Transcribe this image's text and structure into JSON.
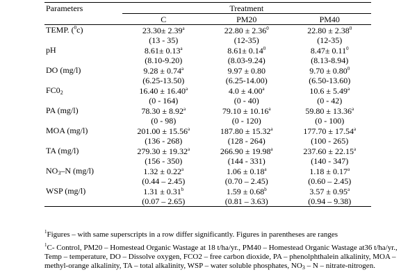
{
  "table": {
    "header": {
      "parameters": "Parameters",
      "treatment": "Treatment",
      "c": "C",
      "pm20": "PM20",
      "pm40": "PM40"
    },
    "rows": [
      {
        "param_a": "TEMP. (",
        "param_sup": "0",
        "param_b": "c)",
        "param_sub": "",
        "c_mean": "23.30± 2.39",
        "c_sup": "a",
        "c_range": "(13 - 35)",
        "pm20_mean": "22.80 ± 2.36",
        "pm20_sup": "0",
        "pm20_range": "(12-35)",
        "pm40_mean": "22.80 ± 2.38",
        "pm40_sup": "0",
        "pm40_range": "(12-35)"
      },
      {
        "param_a": "pH",
        "param_sup": "",
        "param_b": "",
        "param_sub": "",
        "c_mean": "8.61± 0.13",
        "c_sup": "a",
        "c_range": "(8.10-9.20)",
        "pm20_mean": "8.61± 0.14",
        "pm20_sup": "0",
        "pm20_range": "(8.03-9.24)",
        "pm40_mean": "8.47± 0.11",
        "pm40_sup": "0",
        "pm40_range": "(8.13-8.94)"
      },
      {
        "param_a": "DO (mg/l)",
        "param_sup": "",
        "param_b": "",
        "param_sub": "",
        "c_mean": "9.28 ± 0.74",
        "c_sup": "a",
        "c_range": "(6.25-13.50)",
        "pm20_mean": "9.97 ± 0.80",
        "pm20_sup": "",
        "pm20_range": "(6.25-14.00)",
        "pm40_mean": "9.70 ± 0.80",
        "pm40_sup": "0",
        "pm40_range": "(6.50-13.60)"
      },
      {
        "param_a": "FC0",
        "param_sup": "",
        "param_b": "",
        "param_sub": "2",
        "c_mean": "16.40 ± 16.40",
        "c_sup": "a",
        "c_range": "(0 - 164)",
        "pm20_mean": "4.0 ± 4.00",
        "pm20_sup": "a",
        "pm20_range": "(0 - 40)",
        "pm40_mean": "10.6 ± 5.49",
        "pm40_sup": "a",
        "pm40_range": "(0 - 42)"
      },
      {
        "param_a": "PA (mg/l)",
        "param_sup": "",
        "param_b": "",
        "param_sub": "",
        "c_mean": "78.30 ± 8.92",
        "c_sup": "a",
        "c_range": "(0 - 98)",
        "pm20_mean": "79.10 ± 10.16",
        "pm20_sup": "a",
        "pm20_range": "(0 - 120)",
        "pm40_mean": "59.80 ± 13.36",
        "pm40_sup": "a",
        "pm40_range": "(0 - 100)"
      },
      {
        "param_a": "MOA (mg/l)",
        "param_sup": "",
        "param_b": "",
        "param_sub": "",
        "c_mean": "201.00 ± 15.56",
        "c_sup": "a",
        "c_range": "(136 - 268)",
        "pm20_mean": "187.80 ± 15.32",
        "pm20_sup": "a",
        "pm20_range": "(128 - 264)",
        "pm40_mean": "177.70 ± 17.54",
        "pm40_sup": "a",
        "pm40_range": "(100 - 265)"
      },
      {
        "param_a": "TA (mg/l)",
        "param_sup": "",
        "param_b": "",
        "param_sub": "",
        "c_mean": "279.30 ± 19.32",
        "c_sup": "a",
        "c_range": "(156 - 350)",
        "pm20_mean": "266.90 ± 19.98",
        "pm20_sup": "a",
        "pm20_range": "(144 - 331)",
        "pm40_mean": "237.60 ± 22.15",
        "pm40_sup": "a",
        "pm40_range": "(140 - 347)"
      },
      {
        "param_a": "NO",
        "param_sup": "",
        "param_b": "–N (mg/l)",
        "param_sub": "3",
        "c_mean": "1.32 ± 0.22",
        "c_sup": "a",
        "c_range": "(0.44 – 2.45)",
        "pm20_mean": "1.06 ± 0.18",
        "pm20_sup": "a",
        "pm20_range": "(0.70 – 2.45)",
        "pm40_mean": "1.18 ± 0.17",
        "pm40_sup": "a",
        "pm40_range": "(0.60 – 2.45)"
      },
      {
        "param_a": "WSP (mg/l)",
        "param_sup": "",
        "param_b": "",
        "param_sub": "",
        "c_mean": "1.31 ± 0.31",
        "c_sup": "b",
        "c_range": "(0.07 – 2.65)",
        "pm20_mean": "1.59 ± 0.68",
        "pm20_sup": "b",
        "pm20_range": "(0.81 – 3.63)",
        "pm40_mean": "3.57 ± 0.95",
        "pm40_sup": "a",
        "pm40_range": "(0.94 – 9.38)"
      }
    ]
  },
  "notes": {
    "note1_sup": "1",
    "note1": "Figures – with same superscripts in a row differ significantly. Figures in parentheses are ranges",
    "note2_sup": "1",
    "note2": "C- Control, PM20 – Homestead Organic Wastage at 18 t/ha/yr., PM40 – Homestead Organic Wastage at36 t/ha/yr., Temp – temperature, DO – Dissolve oxygen, FCO2 – free carbon dioxide, PA – phenolphthalein alkalinity, MOA – methyl-orange alkalinity, TA – total alkalinity, WSP – water soluble phosphates, NO",
    "note2_sub": "3",
    "note2_end": " – N – nitrate-nitrogen."
  }
}
